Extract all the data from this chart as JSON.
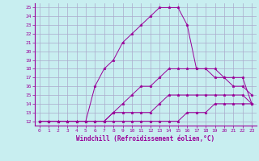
{
  "xlabel": "Windchill (Refroidissement éolien,°C)",
  "background_color": "#c8eef0",
  "line_color": "#990099",
  "grid_color": "#aaaacc",
  "xlim": [
    -0.5,
    23.5
  ],
  "ylim": [
    11.5,
    25.5
  ],
  "xticks": [
    0,
    1,
    2,
    3,
    4,
    5,
    6,
    7,
    8,
    9,
    10,
    11,
    12,
    13,
    14,
    15,
    16,
    17,
    18,
    19,
    20,
    21,
    22,
    23
  ],
  "yticks": [
    12,
    13,
    14,
    15,
    16,
    17,
    18,
    19,
    20,
    21,
    22,
    23,
    24,
    25
  ],
  "line1_x": [
    0,
    1,
    2,
    3,
    4,
    5,
    6,
    7,
    8,
    9,
    10,
    11,
    12,
    13,
    14,
    15,
    16,
    17,
    18,
    19,
    20,
    21,
    22,
    23
  ],
  "line1_y": [
    12,
    12,
    12,
    12,
    12,
    12,
    12,
    12,
    12,
    12,
    12,
    12,
    12,
    12,
    12,
    12,
    13,
    13,
    13,
    14,
    14,
    14,
    14,
    14
  ],
  "line2_x": [
    0,
    1,
    2,
    3,
    4,
    5,
    6,
    7,
    8,
    9,
    10,
    11,
    12,
    13,
    14,
    15,
    16,
    17,
    18,
    19,
    20,
    21,
    22,
    23
  ],
  "line2_y": [
    12,
    12,
    12,
    12,
    12,
    12,
    12,
    12,
    13,
    13,
    13,
    13,
    13,
    14,
    15,
    15,
    15,
    15,
    15,
    15,
    15,
    15,
    15,
    14
  ],
  "line3_x": [
    0,
    1,
    2,
    3,
    4,
    5,
    6,
    7,
    8,
    9,
    10,
    11,
    12,
    13,
    14,
    15,
    16,
    17,
    18,
    19,
    20,
    21,
    22,
    23
  ],
  "line3_y": [
    12,
    12,
    12,
    12,
    12,
    12,
    12,
    12,
    13,
    14,
    15,
    16,
    16,
    17,
    18,
    18,
    18,
    18,
    18,
    18,
    17,
    16,
    16,
    15
  ],
  "line4_x": [
    0,
    1,
    2,
    3,
    4,
    5,
    6,
    7,
    8,
    9,
    10,
    11,
    12,
    13,
    14,
    15,
    16,
    17,
    18,
    19,
    20,
    21,
    22,
    23
  ],
  "line4_y": [
    12,
    12,
    12,
    12,
    12,
    12,
    16,
    18,
    19,
    21,
    22,
    23,
    24,
    25,
    25,
    25,
    23,
    18,
    18,
    17,
    17,
    17,
    17,
    14
  ]
}
